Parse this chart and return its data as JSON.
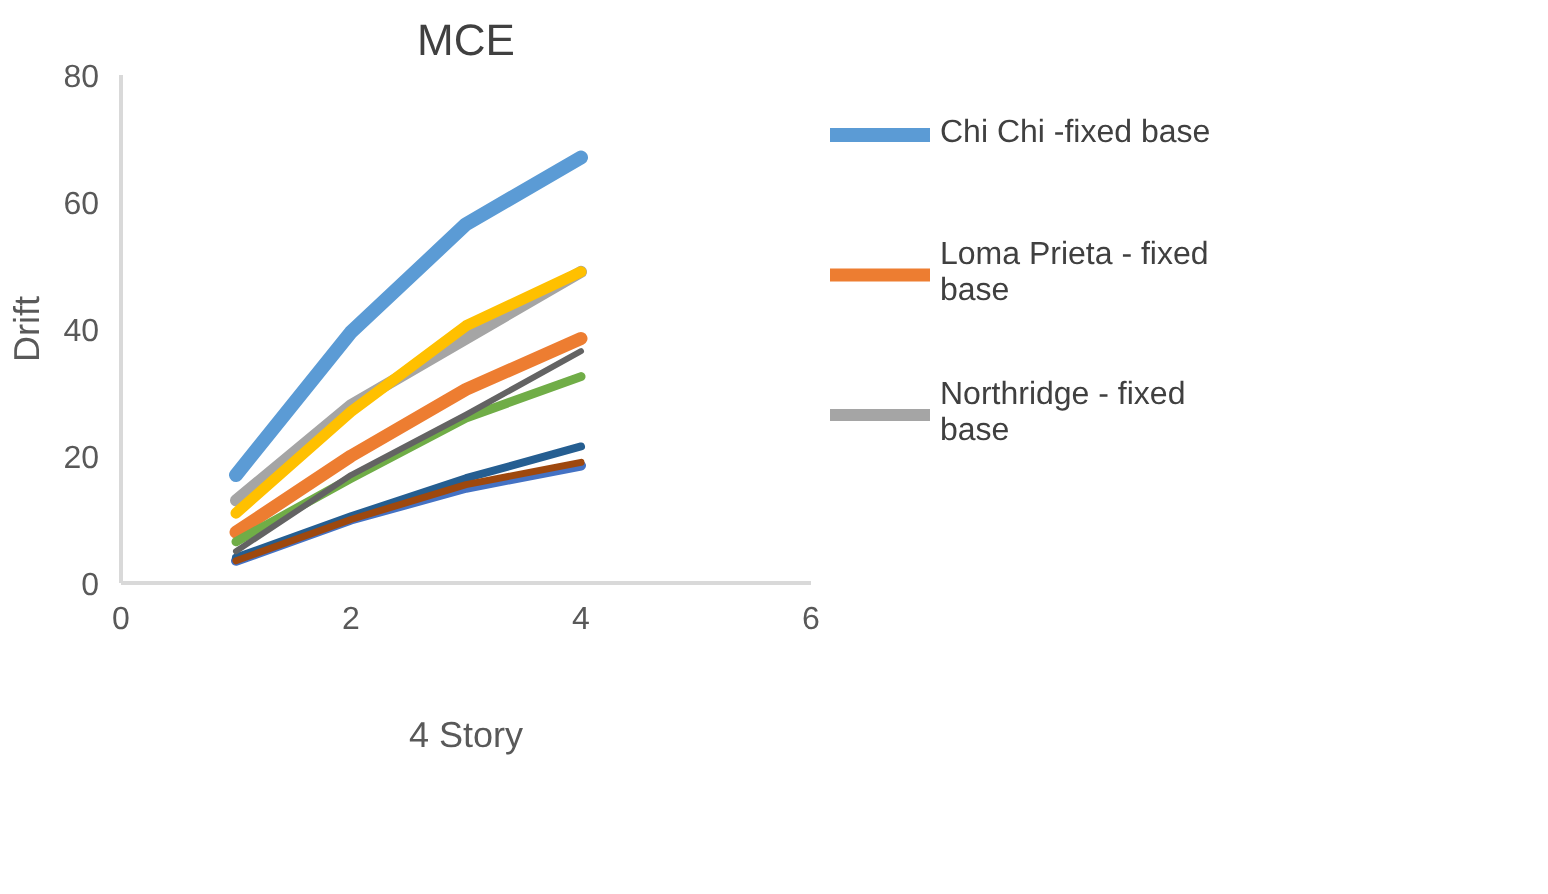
{
  "chart_data": {
    "type": "line",
    "title": "MCE",
    "xlabel": "4 Story",
    "ylabel": "Drift",
    "x": [
      1,
      2,
      3,
      4
    ],
    "series": [
      {
        "name": "Chi Chi -fixed base",
        "color": "#5b9bd5",
        "values": [
          17,
          39.5,
          56.5,
          67
        ]
      },
      {
        "name": "Loma Prieta - fixed base",
        "color": "#ed7d31",
        "values": [
          8,
          20,
          30.5,
          38.5
        ]
      },
      {
        "name": "Northridge - fixed base",
        "color": "#a5a5a5",
        "values": [
          13,
          28,
          38.5,
          49
        ]
      },
      {
        "color": "#ffc000",
        "values": [
          11,
          27,
          40.5,
          49
        ]
      },
      {
        "color": "#4472c4",
        "values": [
          3.5,
          10,
          15,
          18.5
        ]
      },
      {
        "color": "#70ad47",
        "values": [
          6.5,
          16.5,
          26,
          32.5
        ]
      },
      {
        "color": "#255e91",
        "values": [
          4,
          10.5,
          16.5,
          21.5
        ]
      },
      {
        "color": "#9e480e",
        "values": [
          3.5,
          10,
          15.5,
          19
        ]
      },
      {
        "color": "#636363",
        "values": [
          5,
          17,
          26.5,
          36.5
        ]
      }
    ],
    "xlim": [
      0,
      6
    ],
    "ylim": [
      0,
      80
    ],
    "xticks": [
      0,
      2,
      4,
      6
    ],
    "yticks": [
      0,
      20,
      40,
      60,
      80
    ],
    "grid": false,
    "legend": "right",
    "marker": "none",
    "line_style": "solid"
  }
}
